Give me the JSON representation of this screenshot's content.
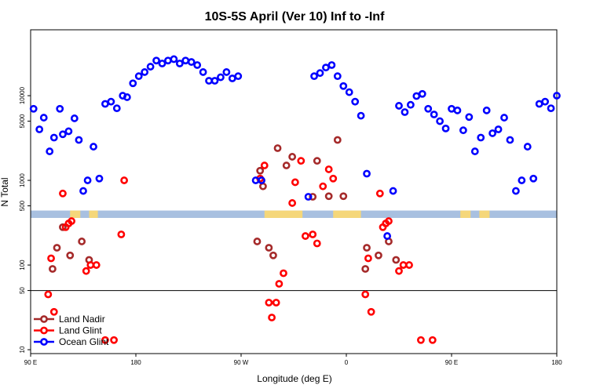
{
  "chart_data": {
    "type": "scatter",
    "title": "10S-5S April (Ver 10)   Inf to -Inf",
    "xlabel": "Longitude (deg E)",
    "ylabel": "N Total",
    "x_axis": {
      "range": [
        90,
        450
      ],
      "ticks": [
        90,
        162,
        234,
        306,
        378,
        450
      ],
      "tick_labels": [
        "90 E",
        "180",
        "90 W",
        "0",
        "90 E",
        "180"
      ]
    },
    "y_axis": {
      "scale": "log",
      "range": [
        9,
        60000
      ],
      "ticks": [
        10,
        50,
        100,
        500,
        1000,
        5000,
        10000
      ],
      "tick_labels": [
        "10",
        "50",
        "100",
        "500",
        "1000",
        "5000",
        "10000"
      ]
    },
    "reference_line_y": 50,
    "land_strip": {
      "y_range": [
        360,
        440
      ]
    },
    "legend": {
      "position": "bottom-left"
    },
    "colors": {
      "land_nadir": "#a52a2a",
      "land_glint": "#ff0000",
      "ocean_glint": "#0000ff",
      "ocean": "#a8c0e0",
      "land": "#f5d77a"
    },
    "series": [
      {
        "name": "Land Nadir",
        "color": "#a52a2a",
        "points": [
          [
            105,
            90
          ],
          [
            108,
            160
          ],
          [
            112,
            280
          ],
          [
            117,
            130
          ],
          [
            125,
            190
          ],
          [
            130,
            115
          ],
          [
            245,
            190
          ],
          [
            247,
            1300
          ],
          [
            249,
            850
          ],
          [
            253,
            160
          ],
          [
            256,
            130
          ],
          [
            259,
            2400
          ],
          [
            265,
            1500
          ],
          [
            269,
            1900
          ],
          [
            283,
            640
          ],
          [
            286,
            1700
          ],
          [
            294,
            650
          ],
          [
            300,
            3000
          ],
          [
            304,
            650
          ],
          [
            319,
            90
          ],
          [
            320,
            160
          ],
          [
            328,
            130
          ],
          [
            335,
            190
          ],
          [
            340,
            115
          ]
        ]
      },
      {
        "name": "Land Glint",
        "color": "#ff0000",
        "points": [
          [
            102,
            45
          ],
          [
            104,
            120
          ],
          [
            106,
            28
          ],
          [
            112,
            700
          ],
          [
            116,
            310
          ],
          [
            114,
            280
          ],
          [
            118,
            330
          ],
          [
            128,
            85
          ],
          [
            131,
            100
          ],
          [
            135,
            100
          ],
          [
            141,
            13
          ],
          [
            147,
            13
          ],
          [
            152,
            230
          ],
          [
            154,
            1000
          ],
          [
            247,
            1050
          ],
          [
            250,
            1500
          ],
          [
            253,
            36
          ],
          [
            255,
            24
          ],
          [
            258,
            36
          ],
          [
            260,
            60
          ],
          [
            263,
            80
          ],
          [
            269,
            540
          ],
          [
            271,
            950
          ],
          [
            275,
            1700
          ],
          [
            278,
            220
          ],
          [
            283,
            230
          ],
          [
            286,
            180
          ],
          [
            290,
            850
          ],
          [
            294,
            1350
          ],
          [
            297,
            1050
          ],
          [
            319,
            45
          ],
          [
            321,
            120
          ],
          [
            323,
            28
          ],
          [
            329,
            700
          ],
          [
            331,
            280
          ],
          [
            333,
            310
          ],
          [
            335,
            330
          ],
          [
            342,
            85
          ],
          [
            345,
            100
          ],
          [
            349,
            100
          ],
          [
            357,
            13
          ],
          [
            365,
            13
          ]
        ]
      },
      {
        "name": "Ocean Glint",
        "color": "#0000ff",
        "points": [
          [
            92,
            7000
          ],
          [
            96,
            4000
          ],
          [
            99,
            5500
          ],
          [
            103,
            2200
          ],
          [
            106,
            3200
          ],
          [
            110,
            7000
          ],
          [
            112,
            3500
          ],
          [
            116,
            3800
          ],
          [
            120,
            5400
          ],
          [
            123,
            3000
          ],
          [
            126,
            750
          ],
          [
            129,
            1000
          ],
          [
            133,
            2500
          ],
          [
            137,
            1050
          ],
          [
            141,
            8000
          ],
          [
            145,
            8500
          ],
          [
            149,
            7100
          ],
          [
            153,
            10000
          ],
          [
            156,
            9600
          ],
          [
            160,
            14000
          ],
          [
            164,
            17000
          ],
          [
            168,
            19000
          ],
          [
            172,
            22000
          ],
          [
            176,
            26000
          ],
          [
            180,
            24000
          ],
          [
            184,
            26000
          ],
          [
            188,
            27000
          ],
          [
            192,
            24000
          ],
          [
            196,
            26000
          ],
          [
            200,
            25000
          ],
          [
            204,
            23000
          ],
          [
            208,
            19000
          ],
          [
            212,
            15000
          ],
          [
            216,
            15000
          ],
          [
            220,
            16500
          ],
          [
            224,
            19000
          ],
          [
            228,
            16000
          ],
          [
            232,
            17000
          ],
          [
            244,
            1000
          ],
          [
            248,
            1000
          ],
          [
            280,
            640
          ],
          [
            284,
            17000
          ],
          [
            288,
            18500
          ],
          [
            292,
            21500
          ],
          [
            296,
            23000
          ],
          [
            300,
            17000
          ],
          [
            304,
            13000
          ],
          [
            308,
            11000
          ],
          [
            312,
            8500
          ],
          [
            316,
            5800
          ],
          [
            320,
            1200
          ],
          [
            334,
            220
          ],
          [
            338,
            750
          ],
          [
            342,
            7600
          ],
          [
            346,
            6400
          ],
          [
            350,
            7800
          ],
          [
            354,
            9900
          ],
          [
            358,
            10500
          ],
          [
            362,
            7000
          ],
          [
            366,
            6000
          ],
          [
            370,
            5000
          ],
          [
            374,
            4100
          ],
          [
            378,
            7000
          ],
          [
            382,
            6700
          ],
          [
            386,
            3900
          ],
          [
            390,
            5600
          ],
          [
            394,
            2200
          ],
          [
            398,
            3200
          ],
          [
            402,
            6700
          ],
          [
            406,
            3600
          ],
          [
            410,
            4000
          ],
          [
            414,
            5500
          ],
          [
            418,
            3000
          ],
          [
            422,
            750
          ],
          [
            426,
            1000
          ],
          [
            430,
            2500
          ],
          [
            434,
            1050
          ],
          [
            438,
            8000
          ],
          [
            442,
            8500
          ],
          [
            446,
            7100
          ],
          [
            450,
            10000
          ]
        ]
      }
    ]
  }
}
